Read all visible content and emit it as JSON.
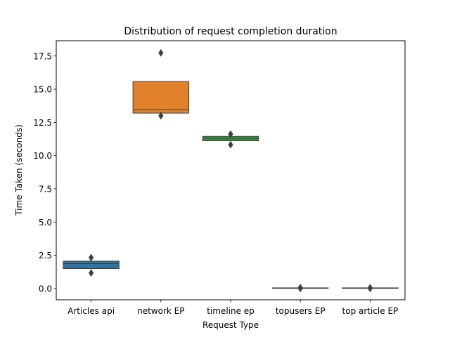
{
  "chart_data": {
    "type": "box",
    "title": "Distribution of request completion duration",
    "xlabel": "Request Type",
    "ylabel": "Time Taken (seconds)",
    "ylim": [
      -0.85,
      18.65
    ],
    "yticks": [
      "0.0",
      "2.5",
      "5.0",
      "7.5",
      "10.0",
      "12.5",
      "15.0",
      "17.5"
    ],
    "categories": [
      "Articles api",
      "network EP",
      "timeline ep",
      "topusers EP",
      "top article EP"
    ],
    "boxes": [
      {
        "category": "Articles api",
        "q1": 1.5,
        "median": 1.87,
        "q3": 2.06,
        "outliers": [
          2.33,
          1.17
        ],
        "color": "#3274a1"
      },
      {
        "category": "network EP",
        "q1": 13.2,
        "median": 13.45,
        "q3": 15.58,
        "outliers": [
          17.73,
          13.0
        ],
        "color": "#e1812c"
      },
      {
        "category": "timeline ep",
        "q1": 11.12,
        "median": 11.3,
        "q3": 11.45,
        "outliers": [
          11.62,
          10.82
        ],
        "color": "#3a923a"
      },
      {
        "category": "topusers EP",
        "q1": 0.02,
        "median": 0.03,
        "q3": 0.05,
        "outliers": [
          0.07,
          0.0
        ],
        "color": "#c03d3e"
      },
      {
        "category": "top article EP",
        "q1": 0.02,
        "median": 0.03,
        "q3": 0.05,
        "outliers": [
          0.06,
          0.01
        ],
        "color": "#9372b2"
      }
    ],
    "grid": false,
    "legend": "none"
  }
}
